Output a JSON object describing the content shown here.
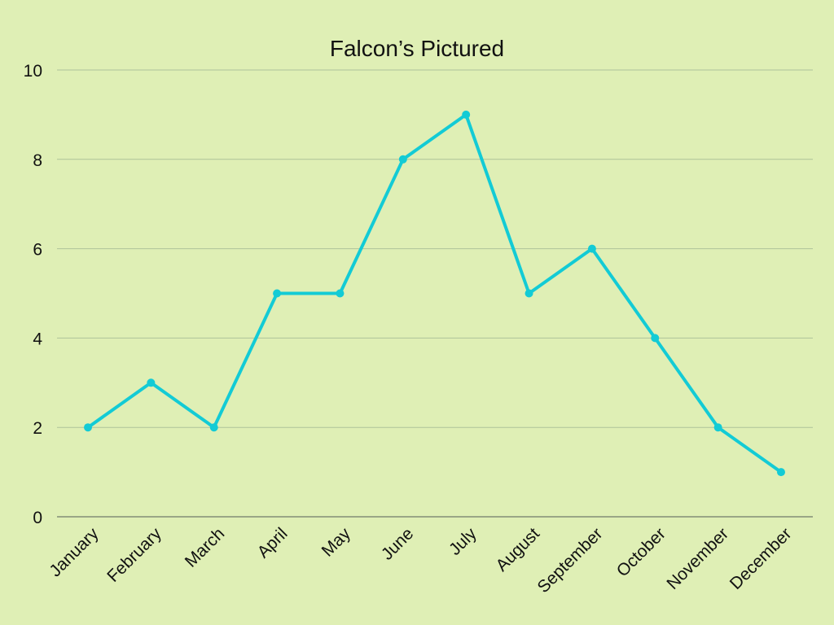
{
  "chart_data": {
    "type": "line",
    "title": "Falcon’s Pictured",
    "xlabel": "",
    "ylabel": "",
    "categories": [
      "January",
      "February",
      "March",
      "April",
      "May",
      "June",
      "July",
      "August",
      "September",
      "October",
      "November",
      "December"
    ],
    "series": [
      {
        "name": "Falcon’s Pictured",
        "values": [
          2,
          3,
          2,
          5,
          5,
          8,
          9,
          5,
          6,
          4,
          2,
          1
        ]
      }
    ],
    "ylim": [
      0,
      10
    ],
    "yticks": [
      0,
      2,
      4,
      6,
      8,
      10
    ],
    "grid": true,
    "legend": "none",
    "colors": {
      "background": "#dfefb5",
      "line": "#13cbd5",
      "grid": "#aec29a",
      "axis": "#6f7a6a",
      "text": "#111111"
    }
  }
}
